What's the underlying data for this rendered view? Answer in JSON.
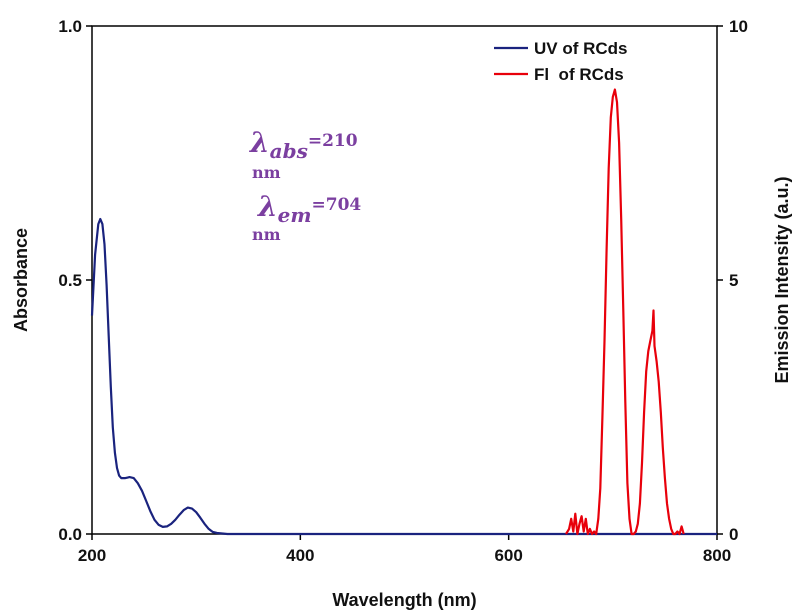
{
  "chart_data": {
    "type": "line",
    "xlabel": "Wavelength (nm)",
    "ylabel_left": "Absorbance",
    "ylabel_right": "Emission Intensity (a.u.)",
    "xlim": [
      200,
      800
    ],
    "ylim_left": [
      0,
      1.0
    ],
    "ylim_right": [
      0,
      10
    ],
    "x_ticks": [
      "200",
      "400",
      "600",
      "800"
    ],
    "y_ticks_left": [
      "0.0",
      "0.5",
      "1.0"
    ],
    "y_ticks_right": [
      "0",
      "5",
      "10"
    ],
    "grid": false,
    "legend_position": "top-right",
    "series": [
      {
        "name": "UV of RCds",
        "axis": "left",
        "color": "#1a237e",
        "x": [
          200,
          203,
          206,
          208,
          210,
          212,
          214,
          216,
          218,
          220,
          222,
          224,
          226,
          228,
          232,
          236,
          240,
          244,
          248,
          252,
          256,
          260,
          264,
          268,
          272,
          276,
          280,
          284,
          288,
          292,
          296,
          300,
          304,
          308,
          312,
          316,
          320,
          330,
          350,
          400,
          450,
          500,
          550,
          600,
          650,
          700,
          750,
          800
        ],
        "values": [
          0.43,
          0.55,
          0.61,
          0.62,
          0.61,
          0.57,
          0.49,
          0.39,
          0.29,
          0.21,
          0.16,
          0.13,
          0.115,
          0.11,
          0.11,
          0.112,
          0.11,
          0.1,
          0.085,
          0.065,
          0.045,
          0.028,
          0.018,
          0.014,
          0.015,
          0.02,
          0.028,
          0.038,
          0.047,
          0.052,
          0.05,
          0.043,
          0.032,
          0.02,
          0.01,
          0.004,
          0.002,
          0.0,
          0.0,
          0.0,
          0.0,
          0.0,
          0.0,
          0.0,
          0.0,
          0.0,
          0.0,
          0.0
        ]
      },
      {
        "name": "Fl  of RCds",
        "axis": "right",
        "color": "#e8000b",
        "x": [
          655,
          658,
          660,
          662,
          664,
          666,
          668,
          670,
          672,
          674,
          676,
          678,
          680,
          682,
          684,
          686,
          688,
          690,
          692,
          694,
          696,
          698,
          700,
          702,
          704,
          706,
          708,
          710,
          712,
          714,
          716,
          718,
          720,
          722,
          724,
          726,
          728,
          730,
          732,
          734,
          736,
          738,
          739,
          740,
          742,
          744,
          746,
          748,
          750,
          752,
          754,
          756,
          758,
          760,
          762,
          764,
          766,
          768
        ],
        "values": [
          0.0,
          0.1,
          0.3,
          0.05,
          0.4,
          0.0,
          0.2,
          0.35,
          0.05,
          0.3,
          0.0,
          0.1,
          0.0,
          0.05,
          0.0,
          0.3,
          0.9,
          2.3,
          3.8,
          5.6,
          7.2,
          8.2,
          8.6,
          8.75,
          8.5,
          7.7,
          6.2,
          4.4,
          2.6,
          1.0,
          0.3,
          0.0,
          0.0,
          0.05,
          0.2,
          0.6,
          1.4,
          2.4,
          3.2,
          3.6,
          3.8,
          4.0,
          4.4,
          3.7,
          3.4,
          3.0,
          2.4,
          1.7,
          1.1,
          0.6,
          0.3,
          0.1,
          0.0,
          0.0,
          0.05,
          0.0,
          0.15,
          0.0
        ]
      }
    ]
  },
  "annotations": {
    "abs_symbol": "λ",
    "abs_sub": "abs",
    "abs_value": "=210",
    "abs_unit": "nm",
    "em_symbol": "λ",
    "em_sub": "em",
    "em_value": "=704",
    "em_unit": "nm",
    "color": "#7b3fa0"
  }
}
